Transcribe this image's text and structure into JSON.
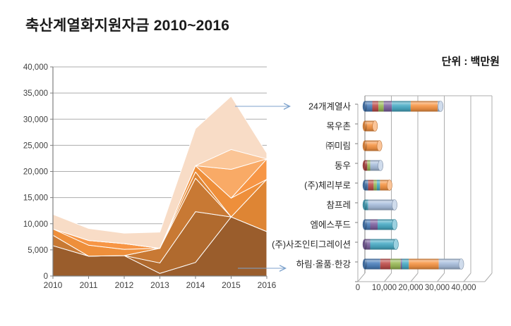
{
  "title": {
    "main": "축산계열화지원자금",
    "range": "2010~2016"
  },
  "unit_label": "단위 : 백만원",
  "years": [
    "2010",
    "2011",
    "2012",
    "2013",
    "2014",
    "2015",
    "2016"
  ],
  "colors": {
    "grid": "#ADADAD",
    "axis": "#7F7F7F",
    "tick_text": "#404040",
    "label_text": "#262626",
    "arrow": "#7DA2CC",
    "area_border": "#FFFFFF",
    "year_series": [
      "#4E81BD",
      "#C0504D",
      "#9BBB59",
      "#8064A2",
      "#4BACC6",
      "#F79646",
      "#A9BFDD"
    ]
  },
  "chart_data": [
    {
      "type": "area",
      "stacked": true,
      "title": "",
      "xlabel": "",
      "ylabel": "",
      "x": [
        "2010",
        "2011",
        "2012",
        "2013",
        "2014",
        "2015",
        "2016"
      ],
      "ylim": [
        0,
        40000
      ],
      "grid": true,
      "legend": false,
      "y_tick_labels": [
        "40,000",
        "35,000",
        "30,000",
        "25,000",
        "20,000",
        "15,000",
        "10,000",
        "5,000",
        "0"
      ],
      "series": [
        {
          "name": "하림·올품·한강",
          "color": "#9A5D2C",
          "values": [
            5800,
            3800,
            3900,
            500,
            2600,
            11300,
            8500
          ]
        },
        {
          "name": "(주)사조인티그레이션",
          "color": "#B06A2E",
          "values": [
            0,
            0,
            0,
            2000,
            9700,
            0,
            0
          ]
        },
        {
          "name": "엠에스푸드",
          "color": "#C87934",
          "values": [
            2000,
            0,
            0,
            2800,
            6400,
            0,
            0
          ]
        },
        {
          "name": "참프레",
          "color": "#DE8534",
          "values": [
            0,
            0,
            0,
            0,
            1200,
            0,
            10000
          ]
        },
        {
          "name": "(주)체리부로",
          "color": "#EE8F3B",
          "values": [
            1200,
            2100,
            1200,
            0,
            1200,
            3600,
            0
          ]
        },
        {
          "name": "동우",
          "color": "#F79646",
          "values": [
            0,
            900,
            1100,
            0,
            0,
            0,
            3900
          ]
        },
        {
          "name": "㈜미림",
          "color": "#F9AA66",
          "values": [
            0,
            0,
            0,
            0,
            0,
            5500,
            0
          ]
        },
        {
          "name": "목우촌",
          "color": "#FBC596",
          "values": [
            0,
            0,
            0,
            0,
            0,
            3800,
            0
          ]
        },
        {
          "name": "24개계열사",
          "color": "#F8DCC6",
          "values": [
            2800,
            2300,
            2000,
            3100,
            7100,
            10200,
            1100
          ]
        }
      ]
    },
    {
      "type": "bar",
      "orientation": "horizontal",
      "stacked": true,
      "style": "3d-cylinder",
      "xlim": [
        0,
        40000
      ],
      "x_tick_labels": [
        "0",
        "10,000",
        "20,000",
        "30,000",
        "40,000"
      ],
      "series_years": [
        "2010",
        "2011",
        "2012",
        "2013",
        "2014",
        "2015",
        "2016"
      ],
      "categories": [
        {
          "name": "24개계열사",
          "values": [
            2800,
            2300,
            2000,
            3100,
            7100,
            10200,
            1100
          ]
        },
        {
          "name": "목우촌",
          "values": [
            0,
            0,
            0,
            0,
            0,
            3800,
            0
          ]
        },
        {
          "name": "㈜미림",
          "values": [
            0,
            0,
            0,
            0,
            0,
            5500,
            0
          ]
        },
        {
          "name": "동우",
          "values": [
            0,
            900,
            1100,
            0,
            0,
            0,
            3900
          ]
        },
        {
          "name": "(주)체리부로",
          "values": [
            1200,
            2100,
            1200,
            0,
            1200,
            3600,
            0
          ]
        },
        {
          "name": "참프레",
          "values": [
            0,
            0,
            0,
            0,
            1200,
            0,
            10000
          ]
        },
        {
          "name": "엠에스푸드",
          "values": [
            2000,
            0,
            0,
            2800,
            6400,
            0,
            0
          ]
        },
        {
          "name": "(주)사조인티그레이션",
          "values": [
            0,
            0,
            0,
            2000,
            9700,
            0,
            0
          ]
        },
        {
          "name": "하림·올품·한강",
          "values": [
            5800,
            3800,
            3900,
            500,
            2600,
            11300,
            8500
          ]
        }
      ]
    }
  ],
  "annotations": [
    {
      "points_to": "24개계열사",
      "from": "area-top-layer-peak-2015"
    },
    {
      "points_to": "하림·올품·한강",
      "from": "area-bottom-layer-2015-2016"
    }
  ]
}
